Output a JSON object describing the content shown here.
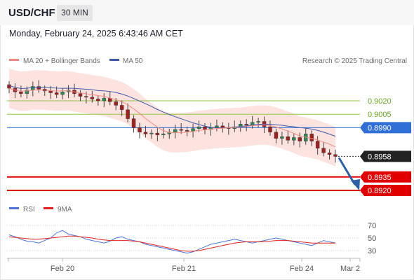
{
  "header": {
    "symbol": "USD/CHF",
    "timeframe": "30 MIN"
  },
  "datetime": "Monday, February 24, 2025 6:43:46 AM CET",
  "legend": {
    "bb": {
      "label": "MA 20 + Bollinger Bands",
      "color": "#f08a80"
    },
    "ma50": {
      "label": "MA 50",
      "color": "#3c5aa6"
    }
  },
  "credit": "Research © 2025 Trading Central",
  "rsi_legend": {
    "rsi": {
      "label": "RSI",
      "color": "#4a74d6"
    },
    "ma": {
      "label": "9MA",
      "color": "#e02020"
    }
  },
  "chart_data": {
    "type": "candlestick",
    "x_tick_labels": [
      "Feb 20",
      "Feb 21",
      "Feb 24",
      "Mar 2"
    ],
    "price_levels": [
      {
        "value": "0.9020",
        "kind": "resistance",
        "color": "#8dc63f"
      },
      {
        "value": "0.9005",
        "kind": "resistance",
        "color": "#8dc63f"
      },
      {
        "value": "0.8990",
        "kind": "pivot",
        "color": "#2f6fd6"
      },
      {
        "value": "0.8958",
        "kind": "last-price",
        "color": "#222222"
      },
      {
        "value": "0.8935",
        "kind": "target",
        "color": "#e00000"
      },
      {
        "value": "0.8920",
        "kind": "target",
        "color": "#e00000"
      }
    ],
    "forecast_arrow": {
      "direction": "down",
      "to": 0.892,
      "color": "#2b5fa8"
    },
    "price_series": [
      0.9034,
      0.903,
      0.9028,
      0.9032,
      0.9036,
      0.9033,
      0.9031,
      0.9029,
      0.9027,
      0.903,
      0.9032,
      0.9028,
      0.9025,
      0.9024,
      0.9022,
      0.902,
      0.9023,
      0.9019,
      0.9015,
      0.901,
      0.9,
      0.899,
      0.8985,
      0.8983,
      0.8984,
      0.8982,
      0.8983,
      0.8985,
      0.8988,
      0.8987,
      0.8986,
      0.8989,
      0.8991,
      0.8988,
      0.899,
      0.8992,
      0.899,
      0.8989,
      0.8991,
      0.8994,
      0.8993,
      0.8996,
      0.8997,
      0.8991,
      0.8985,
      0.8978,
      0.898,
      0.8976,
      0.8979,
      0.8975,
      0.8983,
      0.8975,
      0.8967,
      0.8962,
      0.896,
      0.8958
    ],
    "rsi": {
      "yticks": [
        70,
        50,
        30
      ],
      "ylim": [
        20,
        80
      ],
      "values": [
        55,
        52,
        48,
        45,
        44,
        42,
        46,
        50,
        58,
        62,
        56,
        54,
        52,
        48,
        46,
        44,
        42,
        45,
        50,
        52,
        48,
        46,
        44,
        40,
        38,
        36,
        34,
        32,
        30,
        28,
        26,
        28,
        32,
        36,
        40,
        42,
        44,
        46,
        48,
        46,
        44,
        42,
        44,
        46,
        48,
        50,
        48,
        46,
        44,
        42,
        40,
        38,
        42,
        46,
        44,
        42
      ],
      "ma_values": [
        52,
        51,
        50,
        49,
        48,
        48,
        49,
        50,
        51,
        52,
        53,
        53,
        52,
        51,
        50,
        48,
        47,
        46,
        46,
        46,
        46,
        45,
        44,
        42,
        40,
        38,
        36,
        34,
        32,
        30,
        29,
        29,
        30,
        32,
        34,
        36,
        38,
        40,
        42,
        43,
        44,
        44,
        44,
        44,
        45,
        46,
        46,
        46,
        45,
        44,
        43,
        42,
        42,
        42,
        42,
        42
      ]
    }
  }
}
